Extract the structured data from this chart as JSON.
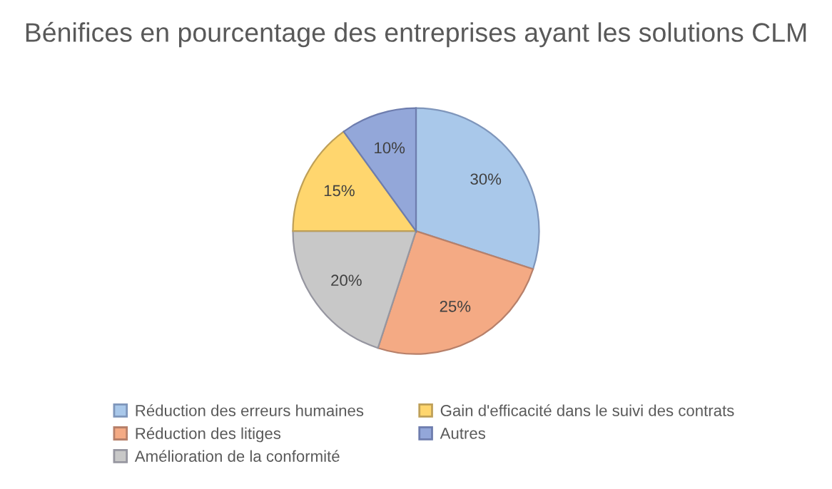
{
  "chart_data": {
    "type": "pie",
    "title": "Bénifices en pourcentage des entreprises ayant les solutions CLM",
    "categories": [
      "Réduction des erreurs humaines",
      "Réduction des litiges",
      "Amélioration de la conformité",
      "Gain d'efficacité dans le suivi des contrats",
      "Autres"
    ],
    "values": [
      30,
      25,
      20,
      15,
      10
    ],
    "value_labels": [
      "30%",
      "25%",
      "20%",
      "15%",
      "10%"
    ],
    "colors": [
      "#a9c8ea",
      "#f4aa84",
      "#c8c8c8",
      "#ffd66e",
      "#93a7d9"
    ],
    "legend": "bottom"
  }
}
